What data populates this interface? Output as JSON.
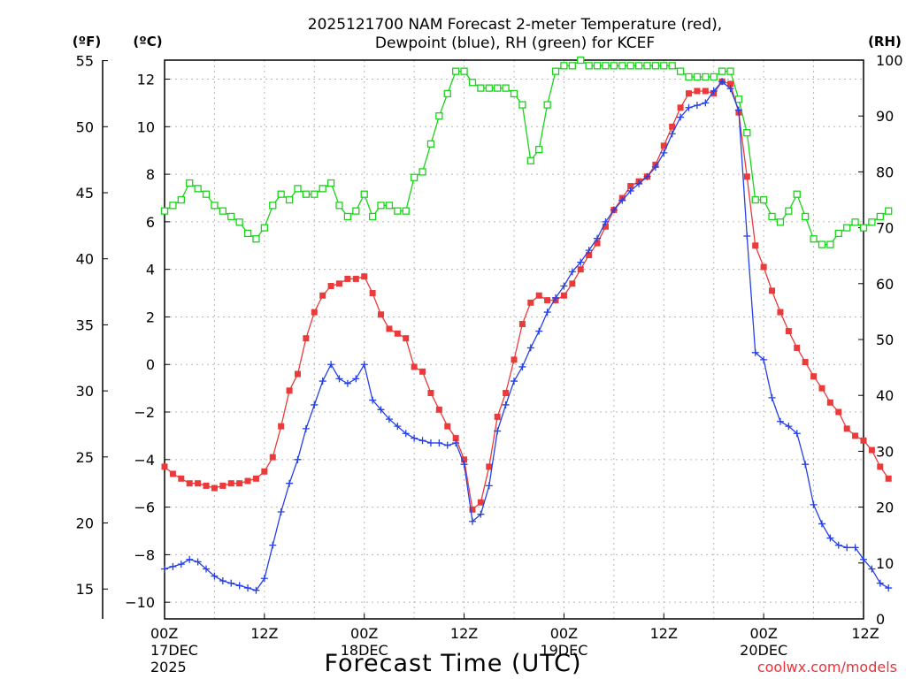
{
  "colors": {
    "temperature": "#ea3a3a",
    "dewpoint": "#2540e6",
    "rh": "#19d419",
    "grid": "#b8b8b8",
    "credit": "#e8343a"
  },
  "chart_data": {
    "type": "line",
    "title": "2025121700 NAM Forecast 2-meter Temperature (red),",
    "subtitle": "Dewpoint (blue), RH (green) for KCEF",
    "xlabel": "Forecast Time (UTC)",
    "credit": "coolwx.com/models",
    "units": {
      "fahrenheit": "(ºF)",
      "celsius": "(ºC)",
      "rh": "(RH)"
    },
    "x_range_hours": [
      0,
      84
    ],
    "x_ticks": [
      {
        "hour": 0,
        "label": "00Z",
        "sub1": "17DEC",
        "sub2": "2025"
      },
      {
        "hour": 12,
        "label": "12Z"
      },
      {
        "hour": 24,
        "label": "00Z",
        "sub1": "18DEC"
      },
      {
        "hour": 36,
        "label": "12Z"
      },
      {
        "hour": 48,
        "label": "00Z",
        "sub1": "19DEC"
      },
      {
        "hour": 60,
        "label": "12Z"
      },
      {
        "hour": 72,
        "label": "00Z",
        "sub1": "20DEC"
      },
      {
        "hour": 84,
        "label": "12Z"
      }
    ],
    "ylim_c": [
      -10.7,
      12.8
    ],
    "ylim_rh": [
      0,
      100
    ],
    "celsius_ticks": [
      "12",
      "10",
      "8",
      "6",
      "4",
      "2",
      "0",
      "−2",
      "−4",
      "−6",
      "−8",
      "−10"
    ],
    "fahrenheit_ticks": [
      "55",
      "50",
      "45",
      "40",
      "35",
      "30",
      "25",
      "20",
      "15"
    ],
    "rh_ticks": [
      "100",
      "90",
      "80",
      "70",
      "60",
      "50",
      "40",
      "30",
      "20",
      "10",
      "0"
    ],
    "series": [
      {
        "name": "Temperature (red)",
        "axis": "C",
        "marker": "square-filled",
        "values": [
          -4.3,
          -4.6,
          -4.8,
          -5.0,
          -5.0,
          -5.1,
          -5.2,
          -5.1,
          -5.0,
          -5.0,
          -4.9,
          -4.8,
          -4.5,
          -3.9,
          -2.6,
          -1.1,
          -0.4,
          1.1,
          2.2,
          2.9,
          3.3,
          3.4,
          3.6,
          3.6,
          3.7,
          3.0,
          2.1,
          1.5,
          1.3,
          1.1,
          -0.1,
          -0.3,
          -1.2,
          -1.9,
          -2.6,
          -3.1,
          -4.0,
          -6.1,
          -5.8,
          -4.3,
          -2.2,
          -1.2,
          0.2,
          1.7,
          2.6,
          2.9,
          2.7,
          2.7,
          2.9,
          3.4,
          4.0,
          4.6,
          5.1,
          5.8,
          6.5,
          7.0,
          7.5,
          7.7,
          7.9,
          8.4,
          9.2,
          10.0,
          10.8,
          11.4,
          11.5,
          11.5,
          11.4,
          11.9,
          11.8,
          10.6,
          7.9,
          5.0,
          4.1,
          3.1,
          2.2,
          1.4,
          0.7,
          0.1,
          -0.5,
          -1.0,
          -1.6,
          -2.0,
          -2.7,
          -3.0,
          -3.2,
          -3.6,
          -4.3,
          -4.8
        ]
      },
      {
        "name": "Dewpoint (blue)",
        "axis": "C",
        "marker": "plus",
        "values": [
          -8.6,
          -8.5,
          -8.4,
          -8.2,
          -8.3,
          -8.6,
          -8.9,
          -9.1,
          -9.2,
          -9.3,
          -9.4,
          -9.5,
          -9.0,
          -7.6,
          -6.2,
          -5.0,
          -4.0,
          -2.7,
          -1.7,
          -0.7,
          0.0,
          -0.6,
          -0.8,
          -0.6,
          0.0,
          -1.5,
          -1.9,
          -2.3,
          -2.6,
          -2.9,
          -3.1,
          -3.2,
          -3.3,
          -3.3,
          -3.4,
          -3.3,
          -4.2,
          -6.6,
          -6.3,
          -5.1,
          -2.8,
          -1.7,
          -0.7,
          -0.1,
          0.7,
          1.4,
          2.2,
          2.8,
          3.3,
          3.9,
          4.3,
          4.8,
          5.3,
          6.0,
          6.5,
          6.9,
          7.3,
          7.6,
          7.9,
          8.3,
          8.9,
          9.7,
          10.4,
          10.8,
          10.9,
          11.0,
          11.5,
          11.9,
          11.6,
          10.7,
          5.4,
          0.5,
          0.2,
          -1.4,
          -2.4,
          -2.6,
          -2.9,
          -4.2,
          -5.9,
          -6.7,
          -7.3,
          -7.6,
          -7.7,
          -7.7,
          -8.2,
          -8.6,
          -9.2,
          -9.4
        ]
      },
      {
        "name": "RH (green)",
        "axis": "RH",
        "marker": "square-open",
        "values": [
          73,
          74,
          75,
          78,
          77,
          76,
          74,
          73,
          72,
          71,
          69,
          68,
          70,
          74,
          76,
          75,
          77,
          76,
          76,
          77,
          78,
          74,
          72,
          73,
          76,
          72,
          74,
          74,
          73,
          73,
          79,
          80,
          85,
          90,
          94,
          98,
          98,
          96,
          95,
          95,
          95,
          95,
          94,
          92,
          82,
          84,
          92,
          98,
          99,
          99,
          100,
          99,
          99,
          99,
          99,
          99,
          99,
          99,
          99,
          99,
          99,
          99,
          98,
          97,
          97,
          97,
          97,
          98,
          98,
          93,
          87,
          75,
          75,
          72,
          71,
          73,
          76,
          72,
          68,
          67,
          67,
          69,
          70,
          71,
          70,
          71,
          72,
          73
        ]
      }
    ]
  }
}
